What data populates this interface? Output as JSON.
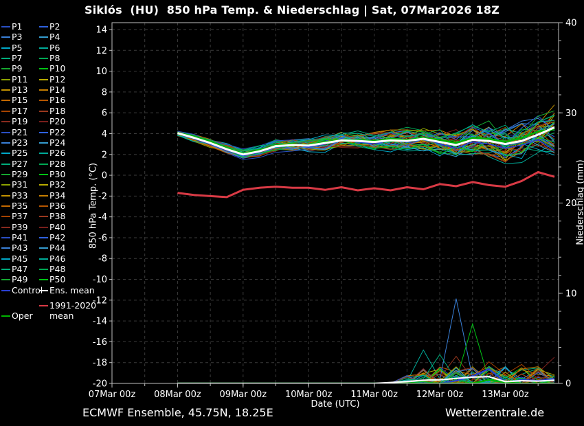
{
  "title": "Siklós  (HU)  850 hPa Temp. & Niederschlag | Sat, 07Mar2026 18Z",
  "footer": {
    "left": "ECMWF Ensemble, 45.75N, 18.25E",
    "right": "Wetterzentrale.de"
  },
  "legend": {
    "member_labels": [
      "P1",
      "P2",
      "P3",
      "P4",
      "P5",
      "P6",
      "P7",
      "P8",
      "P9",
      "P10",
      "P11",
      "P12",
      "P13",
      "P14",
      "P15",
      "P16",
      "P17",
      "P18",
      "P19",
      "P20",
      "P21",
      "P22",
      "P23",
      "P24",
      "P25",
      "P26",
      "P27",
      "P28",
      "P29",
      "P30",
      "P31",
      "P32",
      "P33",
      "P34",
      "P35",
      "P36",
      "P37",
      "P38",
      "P39",
      "P40",
      "P41",
      "P42",
      "P43",
      "P44",
      "P45",
      "P46",
      "P47",
      "P48",
      "P49",
      "P50"
    ],
    "control_label": "Control",
    "ens_mean_label": "Ens. mean",
    "climate_label_line1": "1991-2020",
    "climate_label_line2": "mean",
    "oper_label": "Oper"
  },
  "chart_data": {
    "type": "line",
    "x_axis": {
      "label": "Date (UTC)",
      "tick_hours": [
        0,
        24,
        48,
        72,
        96,
        120,
        144
      ],
      "tick_labels": [
        "07Mar 00z",
        "08Mar 00z",
        "09Mar 00z",
        "10Mar 00z",
        "11Mar 00z",
        "12Mar 00z",
        "13Mar 00z"
      ],
      "minor_step_hours": 12,
      "domain_hours": [
        0,
        163.5
      ]
    },
    "y_left": {
      "label": "850 hPa Temp. (°C)",
      "ticks": [
        14,
        12,
        10,
        8,
        6,
        4,
        2,
        0,
        -2,
        -4,
        -6,
        -8,
        -10,
        -12,
        -14,
        -16,
        -18,
        -20
      ],
      "range": [
        -20,
        14.66
      ],
      "grid_step": 2
    },
    "y_right": {
      "label": "Niederschlag (mm)",
      "ticks": [
        40,
        30,
        20,
        10,
        0
      ],
      "minor_step": 2,
      "range": [
        0,
        40
      ]
    },
    "hours": [
      24,
      30,
      36,
      42,
      48,
      54,
      60,
      66,
      72,
      78,
      84,
      90,
      96,
      102,
      108,
      114,
      120,
      126,
      132,
      138,
      144,
      150,
      156,
      162
    ],
    "series": {
      "ens_mean_temp": [
        4.05,
        3.6,
        3.1,
        2.5,
        2.0,
        2.3,
        2.8,
        2.9,
        2.85,
        3.1,
        3.35,
        3.3,
        3.2,
        3.35,
        3.3,
        3.5,
        3.2,
        2.9,
        3.4,
        3.3,
        3.0,
        3.3,
        3.9,
        4.6
      ],
      "temp_spread_min": [
        3.6,
        3.1,
        2.6,
        2.1,
        1.5,
        1.7,
        2.2,
        2.2,
        2.0,
        2.2,
        2.4,
        2.3,
        2.1,
        2.2,
        2.2,
        2.2,
        1.8,
        1.3,
        1.6,
        1.5,
        1.0,
        1.2,
        1.8,
        1.2
      ],
      "temp_spread_max": [
        4.4,
        4.0,
        3.5,
        3.1,
        2.6,
        2.9,
        3.5,
        3.6,
        3.6,
        3.9,
        4.3,
        4.4,
        4.4,
        4.6,
        4.8,
        5.0,
        5.0,
        4.7,
        5.2,
        5.4,
        5.2,
        5.6,
        6.4,
        7.2
      ],
      "control_temp": [
        4.0,
        3.5,
        3.0,
        2.4,
        1.9,
        2.2,
        2.9,
        3.0,
        2.7,
        3.0,
        3.5,
        3.2,
        3.0,
        3.4,
        3.2,
        3.6,
        3.0,
        2.6,
        3.2,
        3.0,
        2.6,
        2.9,
        3.4,
        2.4
      ],
      "oper_temp": [
        4.1,
        3.7,
        3.2,
        2.6,
        2.1,
        2.4,
        2.9,
        3.0,
        2.9,
        3.2,
        3.4,
        3.4,
        3.3,
        3.5,
        3.4,
        3.6,
        3.4,
        3.1,
        3.6,
        3.5,
        3.2,
        3.6,
        4.2,
        4.4
      ],
      "climate_mean_temp": [
        -1.7,
        -1.9,
        -2.0,
        -2.1,
        -1.4,
        -1.2,
        -1.1,
        -1.2,
        -1.2,
        -1.4,
        -1.15,
        -1.45,
        -1.25,
        -1.45,
        -1.15,
        -1.35,
        -0.85,
        -1.05,
        -0.65,
        -0.95,
        -1.1,
        -0.55,
        0.3,
        -0.15
      ],
      "ens_mean_precip": [
        0,
        0,
        0,
        0,
        0,
        0,
        0,
        0,
        0,
        0,
        0,
        0,
        0,
        0.1,
        0.2,
        0.35,
        0.4,
        0.55,
        0.7,
        0.75,
        0.2,
        0.3,
        0.25,
        0.35
      ],
      "control_precip": [
        0,
        0,
        0,
        0,
        0,
        0,
        0,
        0,
        0,
        0,
        0,
        0,
        0,
        0,
        0,
        0,
        0,
        0.3,
        0.8,
        1.6,
        0.1,
        0.4,
        0.3,
        0.5
      ],
      "oper_precip": [
        0,
        0,
        0,
        0,
        0,
        0,
        0,
        0,
        0,
        0,
        0,
        0,
        0,
        0,
        0,
        0,
        0,
        0,
        0,
        0.4,
        0.1,
        0,
        0,
        0
      ]
    },
    "member_count": 50,
    "precip_outlier_overrides": {
      "5": {
        "108": 0.2,
        "114": 3.7,
        "120": 0.5
      },
      "12": {
        "138": 1.8,
        "144": 0.6,
        "150": 1.5,
        "156": 1.0,
        "162": 0.8
      },
      "17": {
        "120": 0.6,
        "126": 3.0,
        "132": 0.5
      },
      "19": {
        "150": 0.3,
        "156": 1.2,
        "162": 2.9
      },
      "22": {
        "120": 0.4,
        "126": 9.4,
        "132": 0.6
      },
      "29": {
        "126": 0.3,
        "132": 6.6,
        "138": 0.4
      },
      "36": {
        "132": 0.4,
        "138": 2.4,
        "144": 1.0,
        "150": 2.1,
        "156": 0.5
      },
      "46": {
        "114": 0.5,
        "120": 3.2,
        "126": 0.4
      }
    },
    "colors": {
      "member_cycle": [
        "#2a4fc4",
        "#2f62e0",
        "#3a80d8",
        "#359ccf",
        "#00a9c9",
        "#00ab99",
        "#00ad7c",
        "#00a854",
        "#15a830",
        "#00c414",
        "#8ea300",
        "#b9ab00",
        "#c39200",
        "#c67e00",
        "#c46900",
        "#b65600",
        "#a64300",
        "#9a381e",
        "#892a1e",
        "#791f1c"
      ],
      "control": "#2a3fd4",
      "ens_mean": "#ffffff",
      "oper": "#00b400",
      "climate_mean": "#d93a45",
      "grid": "#3b3b3b",
      "border": "#c0c0c0",
      "background": "#000000",
      "text": "#ffffff"
    }
  }
}
